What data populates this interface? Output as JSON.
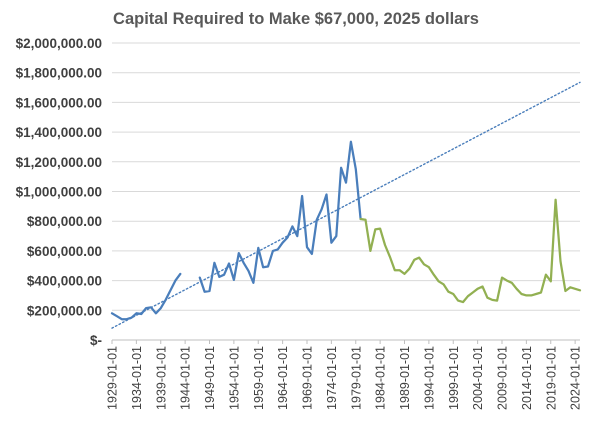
{
  "chart_data": {
    "type": "line",
    "title": "Capital Required to Make $67,000, 2025 dollars",
    "xlabel": "",
    "ylabel": "",
    "x_first": "1929-01-01",
    "x_last": "2025-01-01",
    "x_tick_labels": [
      "1929-01-01",
      "1934-01-01",
      "1939-01-01",
      "1944-01-01",
      "1949-01-01",
      "1954-01-01",
      "1959-01-01",
      "1964-01-01",
      "1969-01-01",
      "1974-01-01",
      "1979-01-01",
      "1984-01-01",
      "1989-01-01",
      "1994-01-01",
      "1999-01-01",
      "2004-01-01",
      "2009-01-01",
      "2014-01-01",
      "2019-01-01",
      "2024-01-01"
    ],
    "y_tick_labels": [
      "$-",
      "$200,000.00",
      "$400,000.00",
      "$600,000.00",
      "$800,000.00",
      "$1,000,000.00",
      "$1,200,000.00",
      "$1,400,000.00",
      "$1,600,000.00",
      "$1,800,000.00",
      "$2,000,000.00"
    ],
    "ylim": [
      0,
      2000000
    ],
    "grid": true,
    "legend": "none",
    "series": [
      {
        "color": "#4a7ebb",
        "points": [
          [
            "1929-01-01",
            180000
          ],
          [
            "1930-01-01",
            160000
          ],
          [
            "1931-01-01",
            140000
          ],
          [
            "1932-01-01",
            140000
          ],
          [
            "1933-01-01",
            150000
          ],
          [
            "1934-01-01",
            180000
          ],
          [
            "1935-01-01",
            175000
          ],
          [
            "1936-01-01",
            215000
          ],
          [
            "1937-01-01",
            220000
          ],
          [
            "1938-01-01",
            180000
          ],
          [
            "1939-01-01",
            215000
          ],
          [
            "1940-01-01",
            270000
          ],
          [
            "1941-01-01",
            335000
          ],
          [
            "1942-01-01",
            400000
          ],
          [
            "1943-01-01",
            445000
          ],
          [
            "1947-01-01",
            420000
          ],
          [
            "1948-01-01",
            325000
          ],
          [
            "1949-01-01",
            330000
          ],
          [
            "1950-01-01",
            520000
          ],
          [
            "1951-01-01",
            425000
          ],
          [
            "1952-01-01",
            440000
          ],
          [
            "1953-01-01",
            515000
          ],
          [
            "1954-01-01",
            405000
          ],
          [
            "1955-01-01",
            585000
          ],
          [
            "1956-01-01",
            520000
          ],
          [
            "1957-01-01",
            465000
          ],
          [
            "1958-01-01",
            385000
          ],
          [
            "1959-01-01",
            620000
          ],
          [
            "1960-01-01",
            490000
          ],
          [
            "1961-01-01",
            495000
          ],
          [
            "1962-01-01",
            600000
          ],
          [
            "1963-01-01",
            610000
          ],
          [
            "1964-01-01",
            655000
          ],
          [
            "1965-01-01",
            690000
          ],
          [
            "1966-01-01",
            765000
          ],
          [
            "1967-01-01",
            700000
          ],
          [
            "1968-01-01",
            970000
          ],
          [
            "1969-01-01",
            625000
          ],
          [
            "1970-01-01",
            580000
          ],
          [
            "1971-01-01",
            810000
          ],
          [
            "1972-01-01",
            880000
          ],
          [
            "1973-01-01",
            980000
          ],
          [
            "1974-01-01",
            655000
          ],
          [
            "1975-01-01",
            700000
          ],
          [
            "1976-01-01",
            1160000
          ],
          [
            "1977-01-01",
            1060000
          ],
          [
            "1978-01-01",
            1335000
          ],
          [
            "1979-01-01",
            1150000
          ],
          [
            "1980-01-01",
            815000
          ]
        ]
      },
      {
        "color": "#92b052",
        "points": [
          [
            "1980-01-01",
            815000
          ],
          [
            "1981-01-01",
            810000
          ],
          [
            "1982-01-01",
            600000
          ],
          [
            "1983-01-01",
            745000
          ],
          [
            "1984-01-01",
            750000
          ],
          [
            "1985-01-01",
            640000
          ],
          [
            "1986-01-01",
            560000
          ],
          [
            "1987-01-01",
            470000
          ],
          [
            "1988-01-01",
            470000
          ],
          [
            "1989-01-01",
            445000
          ],
          [
            "1990-01-01",
            480000
          ],
          [
            "1991-01-01",
            540000
          ],
          [
            "1992-01-01",
            555000
          ],
          [
            "1993-01-01",
            510000
          ],
          [
            "1994-01-01",
            490000
          ],
          [
            "1995-01-01",
            440000
          ],
          [
            "1996-01-01",
            395000
          ],
          [
            "1997-01-01",
            375000
          ],
          [
            "1998-01-01",
            325000
          ],
          [
            "1999-01-01",
            310000
          ],
          [
            "2000-01-01",
            265000
          ],
          [
            "2001-01-01",
            255000
          ],
          [
            "2002-01-01",
            295000
          ],
          [
            "2003-01-01",
            320000
          ],
          [
            "2004-01-01",
            345000
          ],
          [
            "2005-01-01",
            360000
          ],
          [
            "2006-01-01",
            285000
          ],
          [
            "2007-01-01",
            270000
          ],
          [
            "2008-01-01",
            265000
          ],
          [
            "2009-01-01",
            420000
          ],
          [
            "2010-01-01",
            400000
          ],
          [
            "2011-01-01",
            385000
          ],
          [
            "2012-01-01",
            345000
          ],
          [
            "2013-01-01",
            310000
          ],
          [
            "2014-01-01",
            300000
          ],
          [
            "2015-01-01",
            300000
          ],
          [
            "2016-01-01",
            310000
          ],
          [
            "2017-01-01",
            320000
          ],
          [
            "2018-01-01",
            440000
          ],
          [
            "2019-01-01",
            395000
          ],
          [
            "2020-01-01",
            945000
          ],
          [
            "2021-01-01",
            530000
          ],
          [
            "2022-01-01",
            330000
          ],
          [
            "2023-01-01",
            355000
          ],
          [
            "2024-01-01",
            345000
          ],
          [
            "2025-01-01",
            335000
          ]
        ]
      }
    ],
    "trendline": {
      "style": "dotted",
      "color": "#4a7ebb",
      "points": [
        [
          "1929-01-01",
          80000
        ],
        [
          "2025-01-01",
          1735000
        ]
      ]
    }
  }
}
